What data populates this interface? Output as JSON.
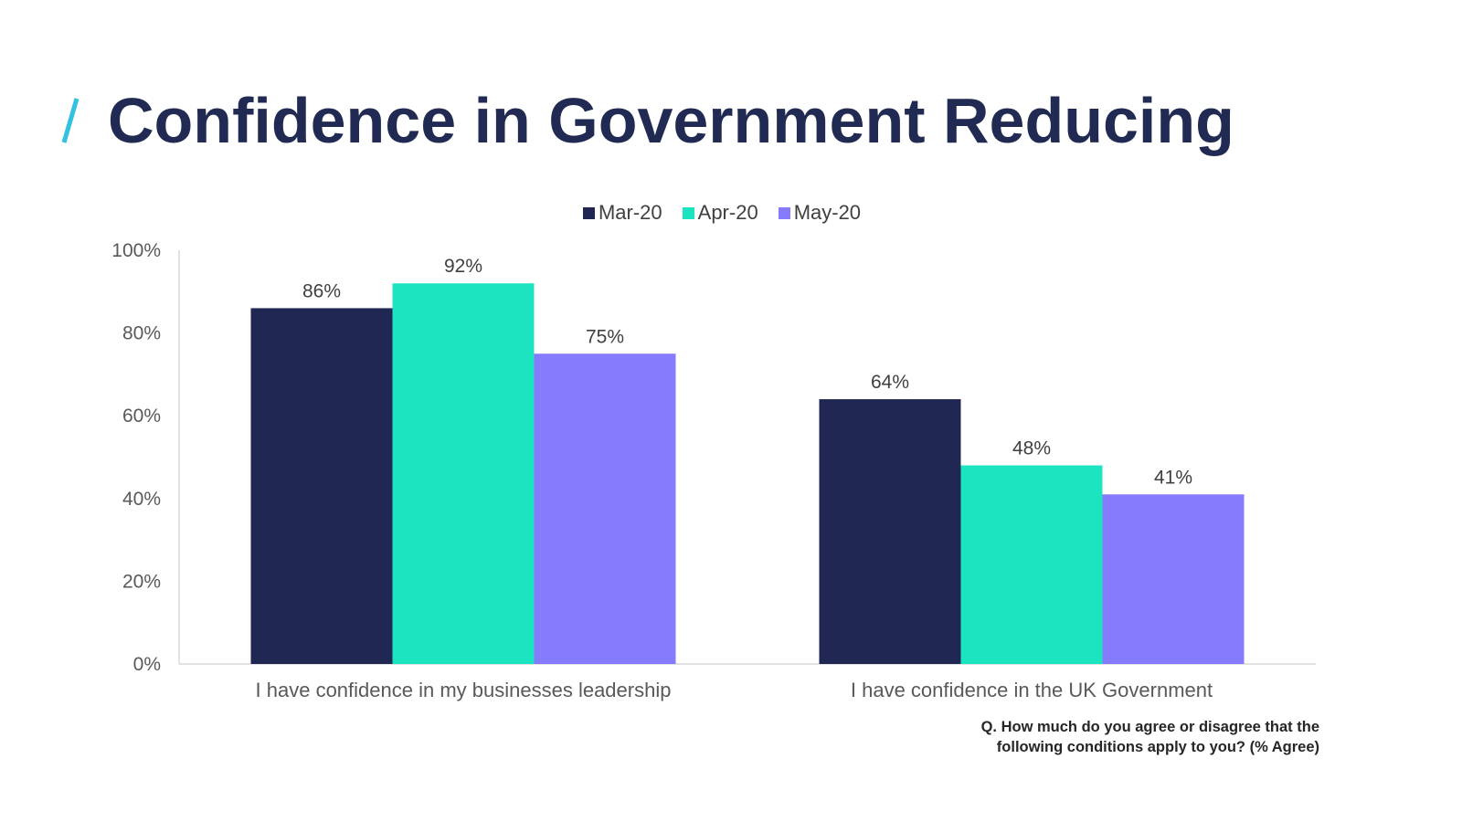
{
  "page": {
    "title": "Confidence in Government Reducing",
    "accent_color": "#32C1E0",
    "title_color": "#212A53"
  },
  "footnote": {
    "line1": "Q. How much do you agree or disagree that the",
    "line2": "following conditions apply to you? (% Agree)"
  },
  "chart_data": {
    "type": "bar",
    "categories": [
      "I have confidence in my businesses leadership",
      "I have confidence in the UK Government"
    ],
    "series": [
      {
        "name": "Mar-20",
        "color": "#212753",
        "values": [
          86,
          64
        ]
      },
      {
        "name": "Apr-20",
        "color": "#1DE4C0",
        "values": [
          92,
          48
        ]
      },
      {
        "name": "May-20",
        "color": "#877BFD",
        "values": [
          75,
          41
        ]
      }
    ],
    "data_labels": [
      [
        "86%",
        "64%"
      ],
      [
        "92%",
        "48%"
      ],
      [
        "75%",
        "41%"
      ]
    ],
    "yticks": [
      "0%",
      "20%",
      "40%",
      "60%",
      "80%",
      "100%"
    ],
    "ylim": [
      0,
      100
    ],
    "grid": false,
    "legend_position": "top-center"
  }
}
